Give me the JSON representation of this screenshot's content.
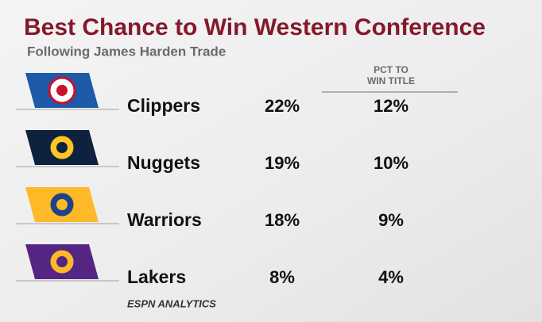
{
  "header": {
    "title": "Best Chance to Win Western Conference",
    "subtitle": "Following James Harden Trade"
  },
  "table": {
    "column_header": [
      "PCT TO",
      "WIN TITLE"
    ],
    "rows": [
      [
        "Clippers",
        "22%",
        "12%"
      ],
      [
        "Nuggets",
        "19%",
        "10%"
      ],
      [
        "Warriors",
        "18%",
        "9%"
      ],
      [
        "Lakers",
        "8%",
        "4%"
      ]
    ]
  },
  "footer": "ESPN ANALYTICS"
}
